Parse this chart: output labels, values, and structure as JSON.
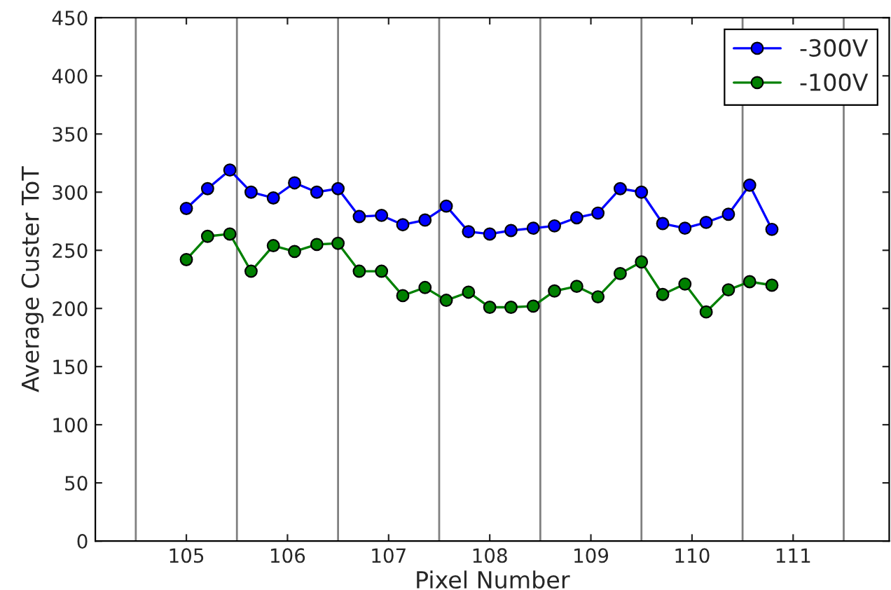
{
  "chart_data": {
    "type": "line",
    "xlabel": "Pixel Number",
    "ylabel": "Average Custer ToT",
    "x": [
      105,
      105.21,
      105.43,
      105.64,
      105.86,
      106.07,
      106.29,
      106.5,
      106.71,
      106.93,
      107.14,
      107.36,
      107.57,
      107.79,
      108,
      108.21,
      108.43,
      108.64,
      108.86,
      109.07,
      109.29,
      109.5,
      109.71,
      109.93,
      110.14,
      110.36,
      110.57,
      110.79
    ],
    "series": [
      {
        "name": "-300V",
        "color": "#0000ff",
        "values": [
          286,
          303,
          319,
          300,
          295,
          308,
          300,
          303,
          279,
          280,
          272,
          276,
          288,
          266,
          264,
          267,
          269,
          271,
          278,
          282,
          303,
          300,
          273,
          269,
          274,
          281,
          306,
          268
        ]
      },
      {
        "name": "-100V",
        "color": "#008000",
        "values": [
          242,
          262,
          264,
          232,
          254,
          249,
          255,
          256,
          232,
          232,
          211,
          218,
          207,
          214,
          201,
          201,
          202,
          215,
          219,
          210,
          230,
          240,
          212,
          221,
          197,
          216,
          223,
          220
        ]
      }
    ],
    "xlim": [
      104.1,
      111.95
    ],
    "xticks": [
      105,
      106,
      107,
      108,
      109,
      110,
      111
    ],
    "ylim": [
      0,
      450
    ],
    "yticks": [
      0,
      50,
      100,
      150,
      200,
      250,
      300,
      350,
      400,
      450
    ],
    "ref_lines": [
      {
        "axis": "x",
        "value": 104.5,
        "color": "#808080"
      },
      {
        "axis": "x",
        "value": 105.5,
        "color": "#808080"
      },
      {
        "axis": "x",
        "value": 106.5,
        "color": "#808080"
      },
      {
        "axis": "x",
        "value": 107.5,
        "color": "#808080"
      },
      {
        "axis": "x",
        "value": 108.5,
        "color": "#808080"
      },
      {
        "axis": "x",
        "value": 109.5,
        "color": "#808080"
      },
      {
        "axis": "x",
        "value": 110.5,
        "color": "#808080"
      },
      {
        "axis": "x",
        "value": 111.5,
        "color": "#808080"
      }
    ],
    "legend": "top right",
    "marker": "circle",
    "line_style": "solid",
    "grid": false
  }
}
